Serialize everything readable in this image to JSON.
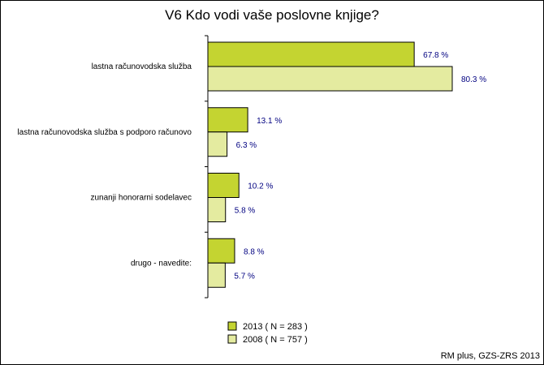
{
  "chart_data": {
    "type": "bar",
    "orientation": "horizontal",
    "title": "V6 Kdo vodi vaše poslovne knjige?",
    "categories": [
      "lastna računovodska služba",
      "lastna računovodska služba s podporo računovo",
      "zunanji honorarni sodelavec",
      "drugo - navedite:"
    ],
    "series": [
      {
        "name": "2013 ( N = 283 )",
        "values": [
          67.8,
          13.1,
          10.2,
          8.8
        ],
        "color": "#c4d431"
      },
      {
        "name": "2008 ( N = 757 )",
        "values": [
          80.3,
          6.3,
          5.8,
          5.7
        ],
        "color": "#e4eba0"
      }
    ],
    "value_labels": [
      [
        "67.8 %",
        "13.1 %",
        "10.2 %",
        "8.8 %"
      ],
      [
        "80.3 %",
        "6.3 %",
        "5.8 %",
        "5.7 %"
      ]
    ],
    "xlim": [
      0,
      100
    ],
    "grid": false,
    "legend_position": "bottom-center",
    "label_color": "#000080"
  },
  "credit": "RM plus, GZS-ZRS 2013"
}
